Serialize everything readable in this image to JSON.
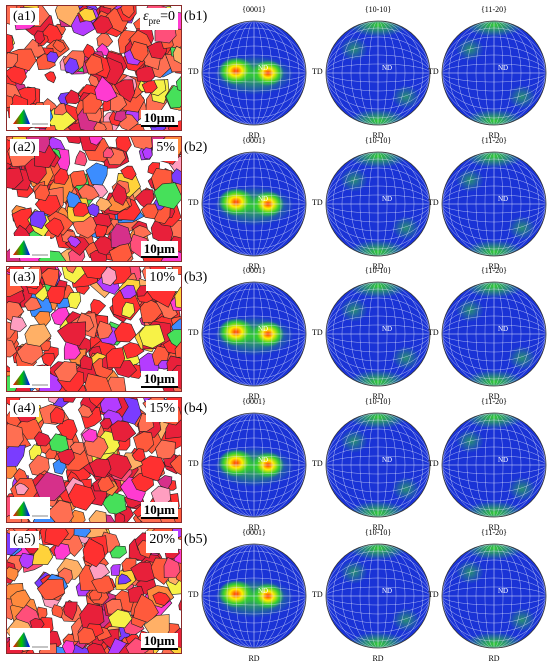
{
  "rows": [
    {
      "a_label": "(a1)",
      "strain_symbol": "ε",
      "strain_sub": "pre",
      "strain_value": "=0",
      "scale": "10μm",
      "b_label": "(b1)"
    },
    {
      "a_label": "(a2)",
      "strain_symbol": "",
      "strain_sub": "",
      "strain_value": "5%",
      "scale": "10μm",
      "b_label": "(b2)"
    },
    {
      "a_label": "(a3)",
      "strain_symbol": "",
      "strain_sub": "",
      "strain_value": "10%",
      "scale": "10μm",
      "b_label": "(b3)"
    },
    {
      "a_label": "(a4)",
      "strain_symbol": "",
      "strain_sub": "",
      "strain_value": "15%",
      "scale": "10μm",
      "b_label": "(b4)"
    },
    {
      "a_label": "(a5)",
      "strain_symbol": "",
      "strain_sub": "",
      "strain_value": "20%",
      "scale": "10μm",
      "b_label": "(b5)"
    }
  ],
  "pole_figures": {
    "titles": [
      "{0001}",
      "{10-10}",
      "{11-20}"
    ],
    "td_label": "TD",
    "rd_label": "RD",
    "nd_label": "ND"
  },
  "colors": {
    "pole_background": "#1a33d6",
    "pole_grid": "#e8ecff",
    "texture_low": "#33cc33",
    "texture_mid": "#ffee00",
    "texture_high": "#ff2a00",
    "ebsd_palette": [
      "#ff3030",
      "#ff5a3c",
      "#e8203a",
      "#ff6f52",
      "#ff8a3d",
      "#ffd23a",
      "#f7f247",
      "#b43cff",
      "#ff3bd1",
      "#7a3cff",
      "#3c8dff",
      "#46e05a",
      "#ff9ec0",
      "#ffb066",
      "#d6308a",
      "#ff4f7a"
    ]
  }
}
